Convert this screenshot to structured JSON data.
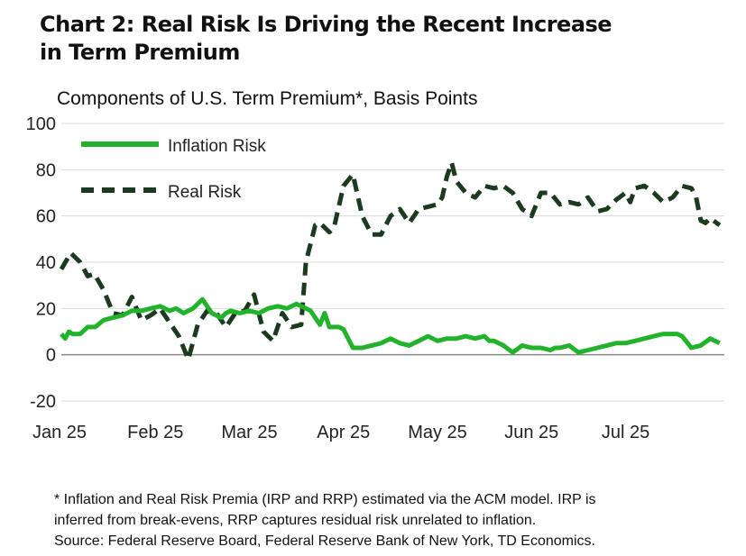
{
  "title_line1": "Chart 2: Real Risk Is Driving the Recent Increase",
  "title_line2": "in Term Premium",
  "footnote_lines": [
    "* Inflation and Real Risk Premia (IRP and RRP) estimated via the ACM model. IRP is",
    "inferred from break-evens, RRP captures residual risk unrelated to inflation.",
    "Source: Federal Reserve Board, Federal Reserve Bank of New York, TD Economics."
  ],
  "colors": {
    "inflation": "#22b22c",
    "real": "#1c3a20",
    "grid": "#d8d8d8",
    "axis": "#888888"
  },
  "chart_data": {
    "type": "line",
    "title": "Chart 2: Real Risk Is Driving the Recent Increase in Term Premium",
    "subtitle": "Components of U.S. Term Premium*, Basis Points",
    "ylim": [
      -20,
      100
    ],
    "yticks": [
      -20,
      0,
      20,
      40,
      60,
      80,
      100
    ],
    "xlim": [
      0,
      7.05
    ],
    "xticks": [
      {
        "label": "Jan 25",
        "x": 0
      },
      {
        "label": "Feb 25",
        "x": 1
      },
      {
        "label": "Mar 25",
        "x": 2
      },
      {
        "label": "Apr 25",
        "x": 3
      },
      {
        "label": "May 25",
        "x": 4
      },
      {
        "label": "Jun 25",
        "x": 5
      },
      {
        "label": "Jul 25",
        "x": 6
      }
    ],
    "legend": [
      "Inflation Risk",
      "Real Risk"
    ],
    "series": [
      {
        "name": "Inflation Risk",
        "style": "solid",
        "x": [
          0,
          0.04,
          0.08,
          0.12,
          0.2,
          0.28,
          0.36,
          0.45,
          0.55,
          0.65,
          0.75,
          0.85,
          0.95,
          1.05,
          1.15,
          1.22,
          1.3,
          1.4,
          1.5,
          1.6,
          1.7,
          1.75,
          1.8,
          1.9,
          2.0,
          2.1,
          2.2,
          2.3,
          2.4,
          2.5,
          2.6,
          2.65,
          2.7,
          2.75,
          2.8,
          2.85,
          2.95,
          3.0,
          3.1,
          3.2,
          3.3,
          3.4,
          3.5,
          3.6,
          3.7,
          3.8,
          3.9,
          4.0,
          4.1,
          4.2,
          4.3,
          4.4,
          4.5,
          4.55,
          4.6,
          4.7,
          4.8,
          4.9,
          5.0,
          5.1,
          5.2,
          5.25,
          5.3,
          5.4,
          5.5,
          5.6,
          5.7,
          5.8,
          5.9,
          5.95,
          6.0,
          6.1,
          6.2,
          6.3,
          6.4,
          6.5,
          6.55,
          6.6,
          6.7,
          6.8,
          6.9,
          7.0
        ],
        "values": [
          9,
          7,
          10,
          9,
          9,
          12,
          12,
          15,
          16,
          17,
          19,
          19,
          20,
          21,
          19,
          20,
          18,
          20,
          24,
          18,
          16,
          18,
          19,
          18,
          19,
          18,
          20,
          21,
          20,
          22,
          20,
          19,
          16,
          13,
          18,
          12,
          12,
          11,
          3,
          3,
          4,
          5,
          7,
          5,
          4,
          6,
          8,
          6,
          7,
          7,
          8,
          7,
          8,
          6,
          6,
          4,
          1,
          4,
          3,
          3,
          2,
          3,
          3,
          4,
          1,
          2,
          3,
          4,
          5,
          5,
          5,
          6,
          7,
          8,
          9,
          9,
          9,
          8,
          3,
          4,
          7,
          5
        ]
      },
      {
        "name": "Real Risk",
        "style": "dashed",
        "x": [
          0,
          0.1,
          0.2,
          0.28,
          0.35,
          0.45,
          0.55,
          0.65,
          0.75,
          0.85,
          0.95,
          1.05,
          1.15,
          1.25,
          1.35,
          1.45,
          1.55,
          1.65,
          1.75,
          1.85,
          1.95,
          2.05,
          2.15,
          2.25,
          2.35,
          2.45,
          2.55,
          2.6,
          2.7,
          2.75,
          2.8,
          2.85,
          2.9,
          3.0,
          3.1,
          3.2,
          3.3,
          3.4,
          3.5,
          3.6,
          3.7,
          3.8,
          3.9,
          4.0,
          4.05,
          4.1,
          4.15,
          4.2,
          4.3,
          4.4,
          4.5,
          4.6,
          4.7,
          4.8,
          4.9,
          5.0,
          5.1,
          5.2,
          5.3,
          5.4,
          5.5,
          5.6,
          5.7,
          5.8,
          5.9,
          6.0,
          6.05,
          6.1,
          6.2,
          6.3,
          6.4,
          6.5,
          6.6,
          6.7,
          6.75,
          6.8,
          6.85,
          6.9,
          7.0
        ],
        "values": [
          37,
          44,
          40,
          34,
          35,
          28,
          18,
          17,
          25,
          15,
          17,
          20,
          14,
          8,
          -2,
          13,
          19,
          18,
          12,
          18,
          19,
          26,
          10,
          6,
          18,
          12,
          13,
          40,
          56,
          57,
          55,
          53,
          55,
          73,
          78,
          60,
          52,
          52,
          60,
          63,
          57,
          63,
          64,
          65,
          68,
          77,
          83,
          75,
          70,
          68,
          73,
          72,
          73,
          70,
          63,
          60,
          70,
          70,
          65,
          66,
          65,
          68,
          62,
          63,
          67,
          70,
          66,
          72,
          73,
          70,
          66,
          68,
          73,
          72,
          68,
          58,
          57,
          59,
          56
        ]
      }
    ]
  }
}
